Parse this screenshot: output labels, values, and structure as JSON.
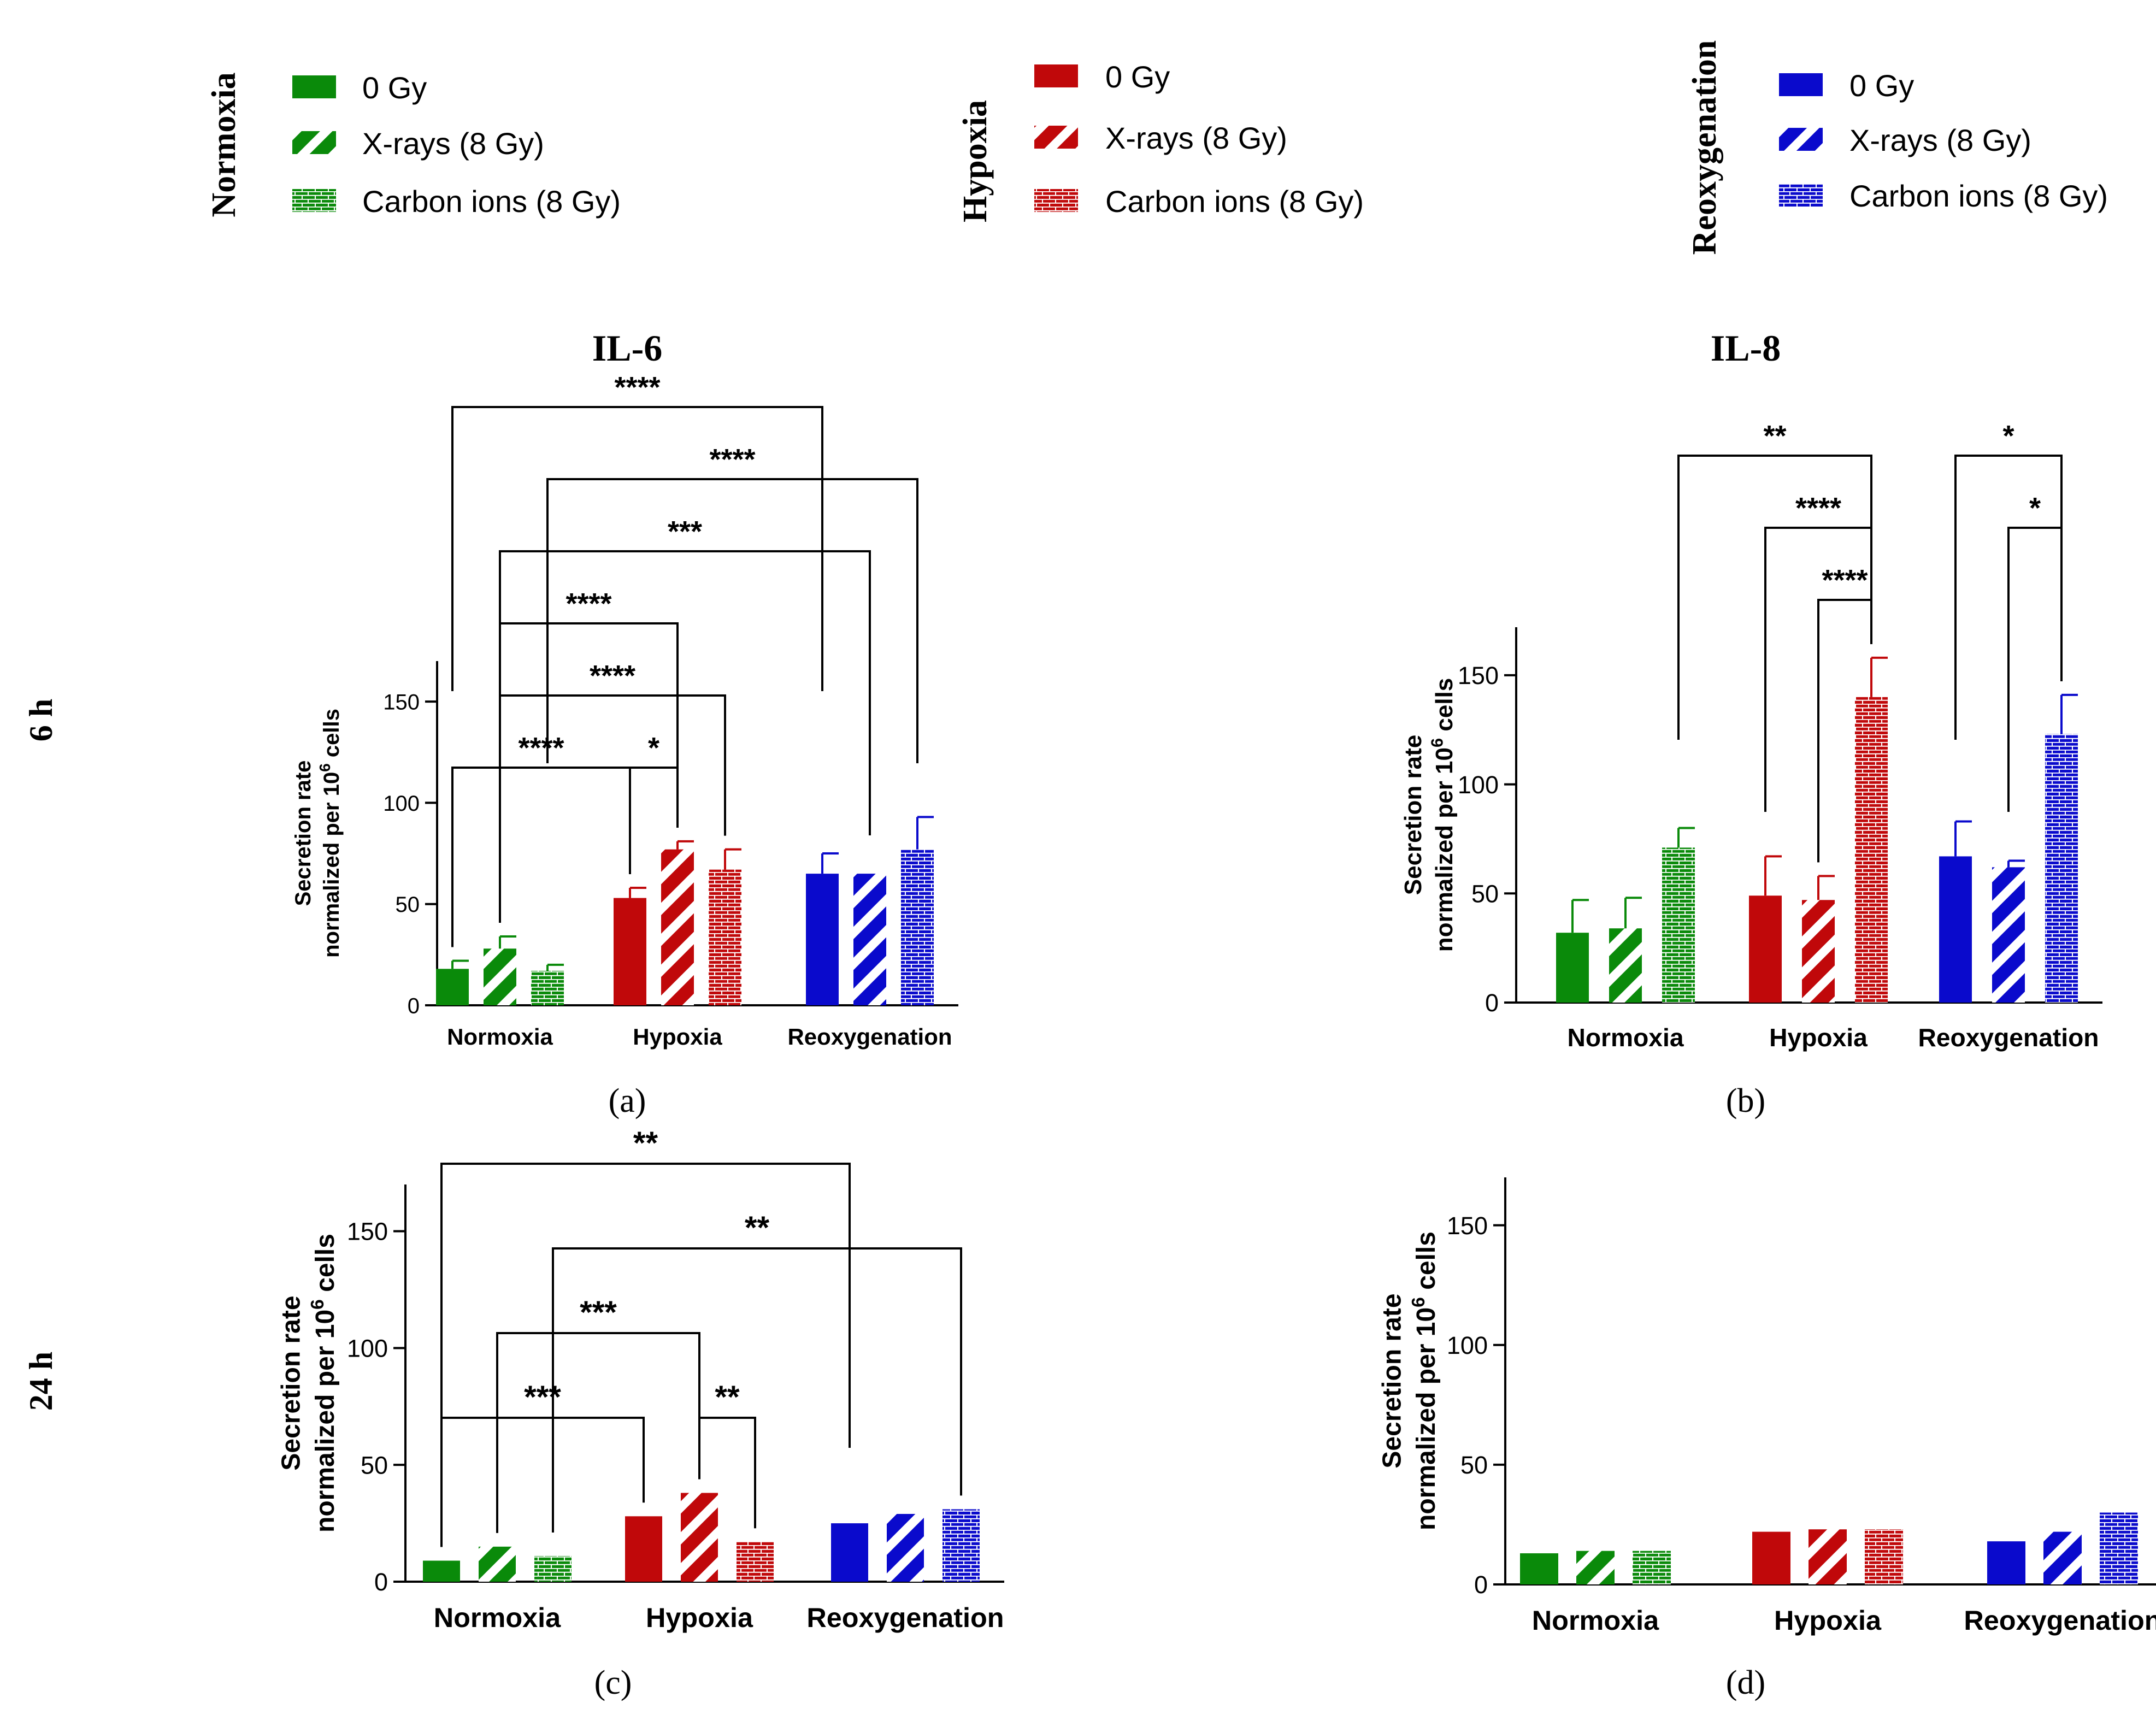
{
  "figure": {
    "row_labels": [
      "6 h",
      "24 h"
    ],
    "column_titles": [
      "IL-6",
      "IL-8"
    ],
    "panel_letters": [
      "(a)",
      "(b)",
      "(c)",
      "(d)"
    ]
  },
  "legend": [
    {
      "condition": "Normoxia",
      "color": "#0A8A0A",
      "entries": [
        {
          "label": "0 Gy",
          "pattern": "solid"
        },
        {
          "label": "X-rays (8 Gy)",
          "pattern": "stripes"
        },
        {
          "label": "Carbon ions (8 Gy)",
          "pattern": "brick"
        }
      ]
    },
    {
      "condition": "Hypoxia",
      "color": "#C0080A",
      "entries": [
        {
          "label": "0 Gy",
          "pattern": "solid"
        },
        {
          "label": "X-rays (8 Gy)",
          "pattern": "stripes"
        },
        {
          "label": "Carbon ions (8 Gy)",
          "pattern": "brick"
        }
      ]
    },
    {
      "condition": "Reoxygenation",
      "color": "#0A0ACC",
      "entries": [
        {
          "label": "0 Gy",
          "pattern": "solid"
        },
        {
          "label": "X-rays (8 Gy)",
          "pattern": "stripes"
        },
        {
          "label": "Carbon ions (8 Gy)",
          "pattern": "brick"
        }
      ]
    }
  ],
  "chart_data": [
    {
      "panel": "(a)",
      "title": "IL-6",
      "type": "bar",
      "ylabel": [
        "Secretion rate",
        "normalized per 10",
        "6",
        " cells"
      ],
      "ylim": [
        0,
        170
      ],
      "yticks": [
        0,
        50,
        100,
        150
      ],
      "categories": [
        "Normoxia",
        "Hypoxia",
        "Reoxygenation"
      ],
      "series": [
        {
          "name": "0 Gy",
          "values": [
            18,
            53,
            65
          ],
          "errors": [
            4,
            5,
            10
          ]
        },
        {
          "name": "X-rays (8 Gy)",
          "values": [
            28,
            77,
            65
          ],
          "errors": [
            6,
            4,
            0
          ]
        },
        {
          "name": "Carbon ions (8 Gy)",
          "values": [
            17,
            67,
            77
          ],
          "errors": [
            3,
            10,
            16
          ]
        }
      ],
      "significance": [
        {
          "from": [
            0,
            0
          ],
          "to": [
            1,
            0
          ],
          "label": "****"
        },
        {
          "from": [
            1,
            0
          ],
          "to": [
            1,
            1
          ],
          "label": "*"
        },
        {
          "from": [
            0,
            1
          ],
          "to": [
            1,
            2
          ],
          "label": "****"
        },
        {
          "from": [
            0,
            1
          ],
          "to": [
            1,
            1
          ],
          "label": "****"
        },
        {
          "from": [
            0,
            1
          ],
          "to": [
            2,
            1
          ],
          "label": "***"
        },
        {
          "from": [
            0,
            2
          ],
          "to": [
            2,
            2
          ],
          "label": "****"
        },
        {
          "from": [
            0,
            0
          ],
          "to": [
            2,
            0
          ],
          "label": "****"
        }
      ]
    },
    {
      "panel": "(b)",
      "title": "IL-8",
      "type": "bar",
      "ylabel": [
        "Secretion rate",
        "normalized per 10",
        "6",
        " cells"
      ],
      "ylim": [
        0,
        172
      ],
      "yticks": [
        0,
        50,
        100,
        150
      ],
      "categories": [
        "Normoxia",
        "Hypoxia",
        "Reoxygenation"
      ],
      "series": [
        {
          "name": "0 Gy",
          "values": [
            32,
            49,
            67
          ],
          "errors": [
            15,
            18,
            16
          ]
        },
        {
          "name": "X-rays (8 Gy)",
          "values": [
            34,
            47,
            62
          ],
          "errors": [
            14,
            11,
            3
          ]
        },
        {
          "name": "Carbon ions (8 Gy)",
          "values": [
            71,
            140,
            123
          ],
          "errors": [
            9,
            18,
            18
          ]
        }
      ],
      "significance": [
        {
          "from": [
            1,
            1
          ],
          "to": [
            1,
            2
          ],
          "label": "****"
        },
        {
          "from": [
            1,
            0
          ],
          "to": [
            1,
            2
          ],
          "label": "****"
        },
        {
          "from": [
            0,
            2
          ],
          "to": [
            1,
            2
          ],
          "label": "**"
        },
        {
          "from": [
            2,
            1
          ],
          "to": [
            2,
            2
          ],
          "label": "*"
        },
        {
          "from": [
            2,
            0
          ],
          "to": [
            2,
            2
          ],
          "label": "*"
        }
      ]
    },
    {
      "panel": "(c)",
      "type": "bar",
      "ylabel": [
        "Secretion rate",
        "normalized per 10",
        "6",
        " cells"
      ],
      "ylim": [
        0,
        170
      ],
      "yticks": [
        0,
        50,
        100,
        150
      ],
      "categories": [
        "Normoxia",
        "Hypoxia",
        "Reoxygenation"
      ],
      "series": [
        {
          "name": "0 Gy",
          "values": [
            9,
            28,
            25
          ]
        },
        {
          "name": "X-rays (8 Gy)",
          "values": [
            15,
            38,
            29
          ]
        },
        {
          "name": "Carbon ions (8 Gy)",
          "values": [
            11,
            17,
            31
          ]
        }
      ],
      "significance": [
        {
          "from": [
            1,
            1
          ],
          "to": [
            1,
            2
          ],
          "label": "**"
        },
        {
          "from": [
            0,
            0
          ],
          "to": [
            1,
            0
          ],
          "label": "***"
        },
        {
          "from": [
            0,
            1
          ],
          "to": [
            1,
            1
          ],
          "label": "***"
        },
        {
          "from": [
            0,
            2
          ],
          "to": [
            2,
            2
          ],
          "label": "**"
        },
        {
          "from": [
            0,
            0
          ],
          "to": [
            2,
            0
          ],
          "label": "**"
        }
      ]
    },
    {
      "panel": "(d)",
      "type": "bar",
      "ylabel": [
        "Secretion rate",
        "normalized per 10",
        "6",
        " cells"
      ],
      "ylim": [
        0,
        170
      ],
      "yticks": [
        0,
        50,
        100,
        150
      ],
      "categories": [
        "Normoxia",
        "Hypoxia",
        "Reoxygenation"
      ],
      "series": [
        {
          "name": "0 Gy",
          "values": [
            13,
            22,
            18
          ]
        },
        {
          "name": "X-rays (8 Gy)",
          "values": [
            14,
            23,
            22
          ]
        },
        {
          "name": "Carbon ions (8 Gy)",
          "values": [
            14,
            23,
            30
          ]
        }
      ],
      "significance": []
    }
  ]
}
